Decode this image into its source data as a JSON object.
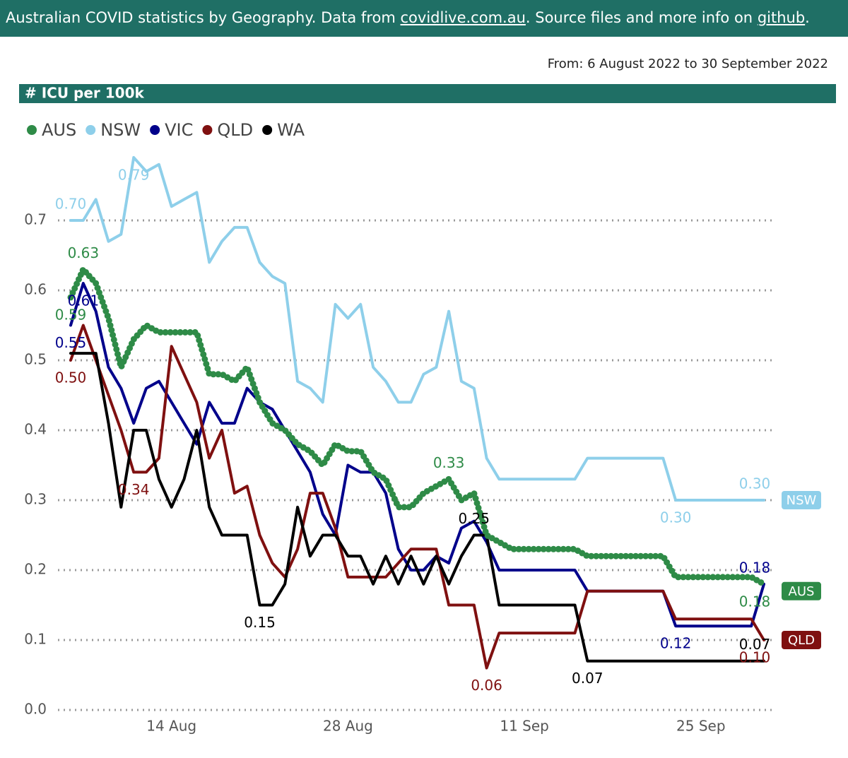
{
  "header": {
    "parts": [
      "Australian COVID statistics by Geography. Data from",
      "covidlive.com.au",
      ". Source files and more info on",
      "github",
      "."
    ]
  },
  "date_range": "From: 6 August 2022 to 30 September 2022",
  "chart_data": {
    "type": "line",
    "title": "# ICU per 100k",
    "x": [
      "6 Aug",
      "7 Aug",
      "8 Aug",
      "9 Aug",
      "10 Aug",
      "11 Aug",
      "12 Aug",
      "13 Aug",
      "14 Aug",
      "15 Aug",
      "16 Aug",
      "17 Aug",
      "18 Aug",
      "19 Aug",
      "20 Aug",
      "21 Aug",
      "22 Aug",
      "23 Aug",
      "24 Aug",
      "25 Aug",
      "26 Aug",
      "27 Aug",
      "28 Aug",
      "29 Aug",
      "30 Aug",
      "31 Aug",
      "1 Sep",
      "2 Sep",
      "3 Sep",
      "4 Sep",
      "5 Sep",
      "6 Sep",
      "7 Sep",
      "8 Sep",
      "9 Sep",
      "10 Sep",
      "11 Sep",
      "12 Sep",
      "13 Sep",
      "14 Sep",
      "15 Sep",
      "16 Sep",
      "17 Sep",
      "18 Sep",
      "19 Sep",
      "20 Sep",
      "21 Sep",
      "22 Sep",
      "23 Sep",
      "24 Sep",
      "25 Sep",
      "26 Sep",
      "27 Sep",
      "28 Sep",
      "29 Sep",
      "30 Sep"
    ],
    "xticks": [
      "14 Aug",
      "28 Aug",
      "11 Sep",
      "25 Sep"
    ],
    "ylim": [
      0,
      0.8
    ],
    "yticks": [
      {
        "value": 0,
        "label": "0.0"
      },
      0.1,
      0.2,
      0.3,
      0.4,
      0.5,
      0.6,
      0.7
    ],
    "grid": true,
    "series": [
      {
        "name": "AUS",
        "color": "#2e8b47",
        "values": [
          0.59,
          0.63,
          0.61,
          0.56,
          0.49,
          0.53,
          0.55,
          0.54,
          0.54,
          0.54,
          0.54,
          0.48,
          0.48,
          0.47,
          0.49,
          0.44,
          0.41,
          0.4,
          0.38,
          0.37,
          0.35,
          0.38,
          0.37,
          0.37,
          0.34,
          0.33,
          0.29,
          0.29,
          0.31,
          0.32,
          0.33,
          0.3,
          0.31,
          0.25,
          0.24,
          0.23,
          0.23,
          0.23,
          0.23,
          0.23,
          0.23,
          0.22,
          0.22,
          0.22,
          0.22,
          0.22,
          0.22,
          0.22,
          0.19,
          0.19,
          0.19,
          0.19,
          0.19,
          0.19,
          0.19,
          0.18
        ],
        "value_labels": [
          "0.59",
          "0.63",
          null,
          null,
          null,
          null,
          null,
          null,
          null,
          null,
          null,
          null,
          null,
          null,
          null,
          null,
          null,
          null,
          null,
          null,
          null,
          null,
          null,
          null,
          null,
          null,
          null,
          null,
          null,
          null,
          "0.33",
          null,
          null,
          null,
          null,
          null,
          null,
          null,
          null,
          null,
          null,
          null,
          null,
          null,
          null,
          null,
          null,
          null,
          null,
          null,
          null,
          null,
          null,
          null,
          null,
          "0.18"
        ]
      },
      {
        "name": "NSW",
        "color": "#8ecfea",
        "values": [
          0.7,
          0.7,
          0.73,
          0.67,
          0.68,
          0.79,
          0.77,
          0.78,
          0.72,
          0.73,
          0.74,
          0.64,
          0.67,
          0.69,
          0.69,
          0.64,
          0.62,
          0.61,
          0.47,
          0.46,
          0.44,
          0.58,
          0.56,
          0.58,
          0.49,
          0.47,
          0.44,
          0.44,
          0.48,
          0.49,
          0.57,
          0.47,
          0.46,
          0.36,
          0.33,
          0.33,
          0.33,
          0.33,
          0.33,
          0.33,
          0.33,
          0.36,
          0.36,
          0.36,
          0.36,
          0.36,
          0.36,
          0.36,
          0.3,
          0.3,
          0.3,
          0.3,
          0.3,
          0.3,
          0.3,
          0.3
        ],
        "value_labels": [
          "0.70",
          null,
          null,
          null,
          null,
          "0.79",
          null,
          null,
          null,
          null,
          null,
          null,
          null,
          null,
          null,
          null,
          null,
          null,
          null,
          null,
          null,
          null,
          null,
          null,
          null,
          null,
          null,
          null,
          null,
          null,
          null,
          null,
          null,
          null,
          null,
          null,
          null,
          null,
          null,
          null,
          null,
          null,
          null,
          null,
          null,
          null,
          null,
          null,
          "0.30",
          null,
          null,
          null,
          null,
          null,
          null,
          "0.30"
        ]
      },
      {
        "name": "VIC",
        "color": "#00008b",
        "values": [
          0.55,
          0.61,
          0.57,
          0.49,
          0.46,
          0.41,
          0.46,
          0.47,
          0.44,
          0.41,
          0.38,
          0.44,
          0.41,
          0.41,
          0.46,
          0.44,
          0.43,
          0.4,
          0.37,
          0.34,
          0.28,
          0.25,
          0.35,
          0.34,
          0.34,
          0.31,
          0.23,
          0.2,
          0.2,
          0.22,
          0.21,
          0.26,
          0.27,
          0.24,
          0.2,
          0.2,
          0.2,
          0.2,
          0.2,
          0.2,
          0.2,
          0.17,
          0.17,
          0.17,
          0.17,
          0.17,
          0.17,
          0.17,
          0.12,
          0.12,
          0.12,
          0.12,
          0.12,
          0.12,
          0.12,
          0.18
        ],
        "value_labels": [
          "0.55",
          "0.61",
          null,
          null,
          null,
          null,
          null,
          null,
          null,
          null,
          null,
          null,
          null,
          null,
          null,
          null,
          null,
          null,
          null,
          null,
          null,
          null,
          null,
          null,
          null,
          null,
          null,
          null,
          null,
          null,
          null,
          null,
          null,
          null,
          null,
          null,
          null,
          null,
          null,
          null,
          null,
          null,
          null,
          null,
          null,
          null,
          null,
          null,
          "0.12",
          null,
          null,
          null,
          null,
          null,
          null,
          "0.18"
        ]
      },
      {
        "name": "QLD",
        "color": "#7f1010",
        "values": [
          0.5,
          0.55,
          0.5,
          0.45,
          0.4,
          0.34,
          0.34,
          0.36,
          0.52,
          0.48,
          0.44,
          0.36,
          0.4,
          0.31,
          0.32,
          0.25,
          0.21,
          0.19,
          0.23,
          0.31,
          0.31,
          0.26,
          0.19,
          0.19,
          0.19,
          0.19,
          0.21,
          0.23,
          0.23,
          0.23,
          0.15,
          0.15,
          0.15,
          0.06,
          0.11,
          0.11,
          0.11,
          0.11,
          0.11,
          0.11,
          0.11,
          0.17,
          0.17,
          0.17,
          0.17,
          0.17,
          0.17,
          0.17,
          0.13,
          0.13,
          0.13,
          0.13,
          0.13,
          0.13,
          0.13,
          0.1
        ],
        "value_labels": [
          "0.50",
          null,
          null,
          null,
          null,
          "0.34",
          null,
          null,
          null,
          null,
          null,
          null,
          null,
          null,
          null,
          null,
          null,
          null,
          null,
          null,
          null,
          null,
          null,
          null,
          null,
          null,
          null,
          null,
          null,
          null,
          null,
          null,
          null,
          "0.06",
          null,
          null,
          null,
          null,
          null,
          null,
          null,
          null,
          null,
          null,
          null,
          null,
          null,
          null,
          null,
          null,
          null,
          null,
          null,
          null,
          null,
          "0.10"
        ]
      },
      {
        "name": "WA",
        "color": "#000000",
        "values": [
          0.51,
          0.51,
          0.51,
          0.41,
          0.29,
          0.4,
          0.4,
          0.33,
          0.29,
          0.33,
          0.4,
          0.29,
          0.25,
          0.25,
          0.25,
          0.15,
          0.15,
          0.18,
          0.29,
          0.22,
          0.25,
          0.25,
          0.22,
          0.22,
          0.18,
          0.22,
          0.18,
          0.22,
          0.18,
          0.22,
          0.18,
          0.22,
          0.25,
          0.25,
          0.15,
          0.15,
          0.15,
          0.15,
          0.15,
          0.15,
          0.15,
          0.07,
          0.07,
          0.07,
          0.07,
          0.07,
          0.07,
          0.07,
          0.07,
          0.07,
          0.07,
          0.07,
          0.07,
          0.07,
          0.07,
          0.07
        ],
        "value_labels": [
          null,
          null,
          null,
          null,
          null,
          null,
          null,
          null,
          null,
          null,
          null,
          null,
          null,
          null,
          null,
          "0.15",
          null,
          null,
          null,
          null,
          null,
          null,
          null,
          null,
          null,
          null,
          null,
          null,
          null,
          null,
          null,
          null,
          "0.25",
          null,
          null,
          null,
          null,
          null,
          null,
          null,
          null,
          "0.07",
          null,
          null,
          null,
          null,
          null,
          null,
          null,
          null,
          null,
          null,
          null,
          null,
          null,
          "0.07"
        ]
      }
    ]
  }
}
